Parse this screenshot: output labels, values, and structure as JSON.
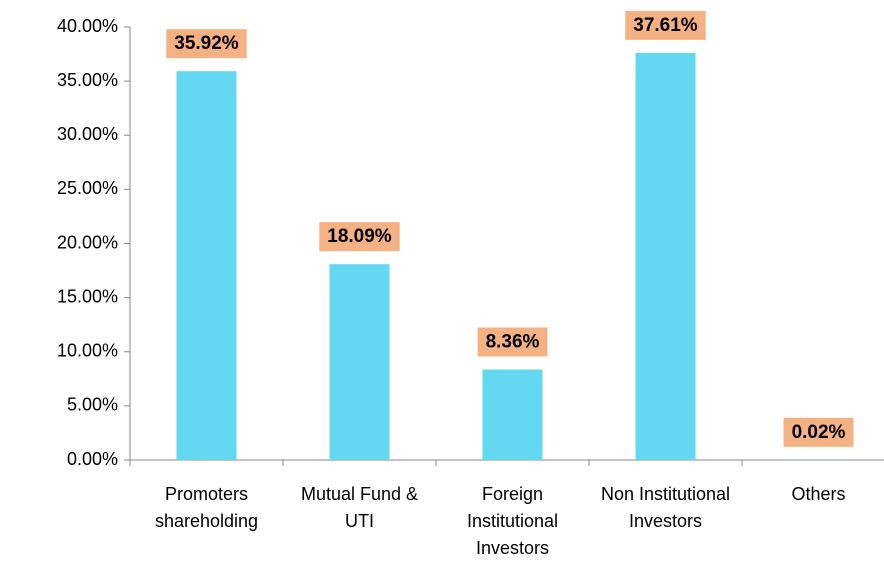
{
  "chart_data": {
    "type": "bar",
    "categories": [
      "Promoters shareholding",
      "Mutual Fund & UTI",
      "Foreign Institutional Investors",
      "Non Institutional Investors",
      "Others"
    ],
    "values": [
      35.92,
      18.09,
      8.36,
      37.61,
      0.02
    ],
    "value_labels": [
      "35.92%",
      "18.09%",
      "8.36%",
      "37.61%",
      "0.02%"
    ],
    "color": "#64d8f0",
    "label_color": "#f4b183",
    "ylim": [
      0,
      40
    ],
    "yticks": [
      {
        "value": 0,
        "label": "0.00%"
      },
      {
        "value": 5,
        "label": "5.00%"
      },
      {
        "value": 10,
        "label": "10.00%"
      },
      {
        "value": 15,
        "label": "15.00%"
      },
      {
        "value": 20,
        "label": "20.00%"
      },
      {
        "value": 25,
        "label": "25.00%"
      },
      {
        "value": 30,
        "label": "30.00%"
      },
      {
        "value": 35,
        "label": "35.00%"
      },
      {
        "value": 40,
        "label": "40.00%"
      }
    ],
    "grid": false
  }
}
